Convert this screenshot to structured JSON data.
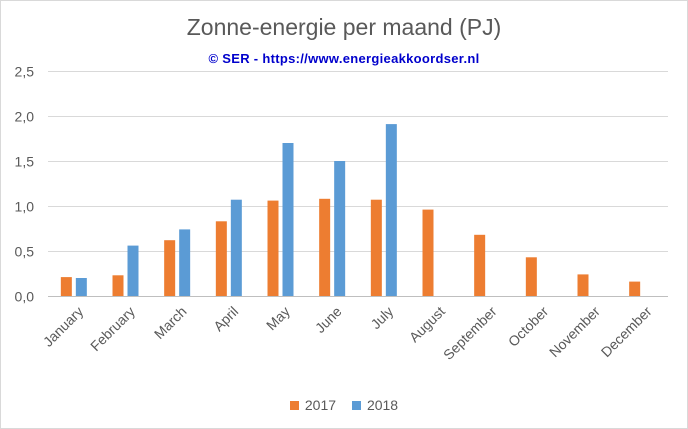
{
  "chart_data": {
    "type": "bar",
    "title": "Zonne-energie per maand (PJ)",
    "subtitle": "© SER - https://www.energieakkoordser.nl",
    "categories": [
      "January",
      "February",
      "March",
      "April",
      "May",
      "June",
      "July",
      "August",
      "September",
      "October",
      "November",
      "December"
    ],
    "series": [
      {
        "name": "2017",
        "color": "#ed7d31",
        "values": [
          0.21,
          0.23,
          0.62,
          0.83,
          1.06,
          1.08,
          1.07,
          0.96,
          0.68,
          0.43,
          0.24,
          0.16
        ]
      },
      {
        "name": "2018",
        "color": "#5b9bd5",
        "values": [
          0.2,
          0.56,
          0.74,
          1.07,
          1.7,
          1.5,
          1.91,
          null,
          null,
          null,
          null,
          null
        ]
      }
    ],
    "y_ticks": [
      "0,0",
      "0,5",
      "1,0",
      "1,5",
      "2,0",
      "2,5"
    ],
    "ylim": [
      0,
      2.5
    ],
    "grid": true,
    "legend_position": "bottom"
  }
}
